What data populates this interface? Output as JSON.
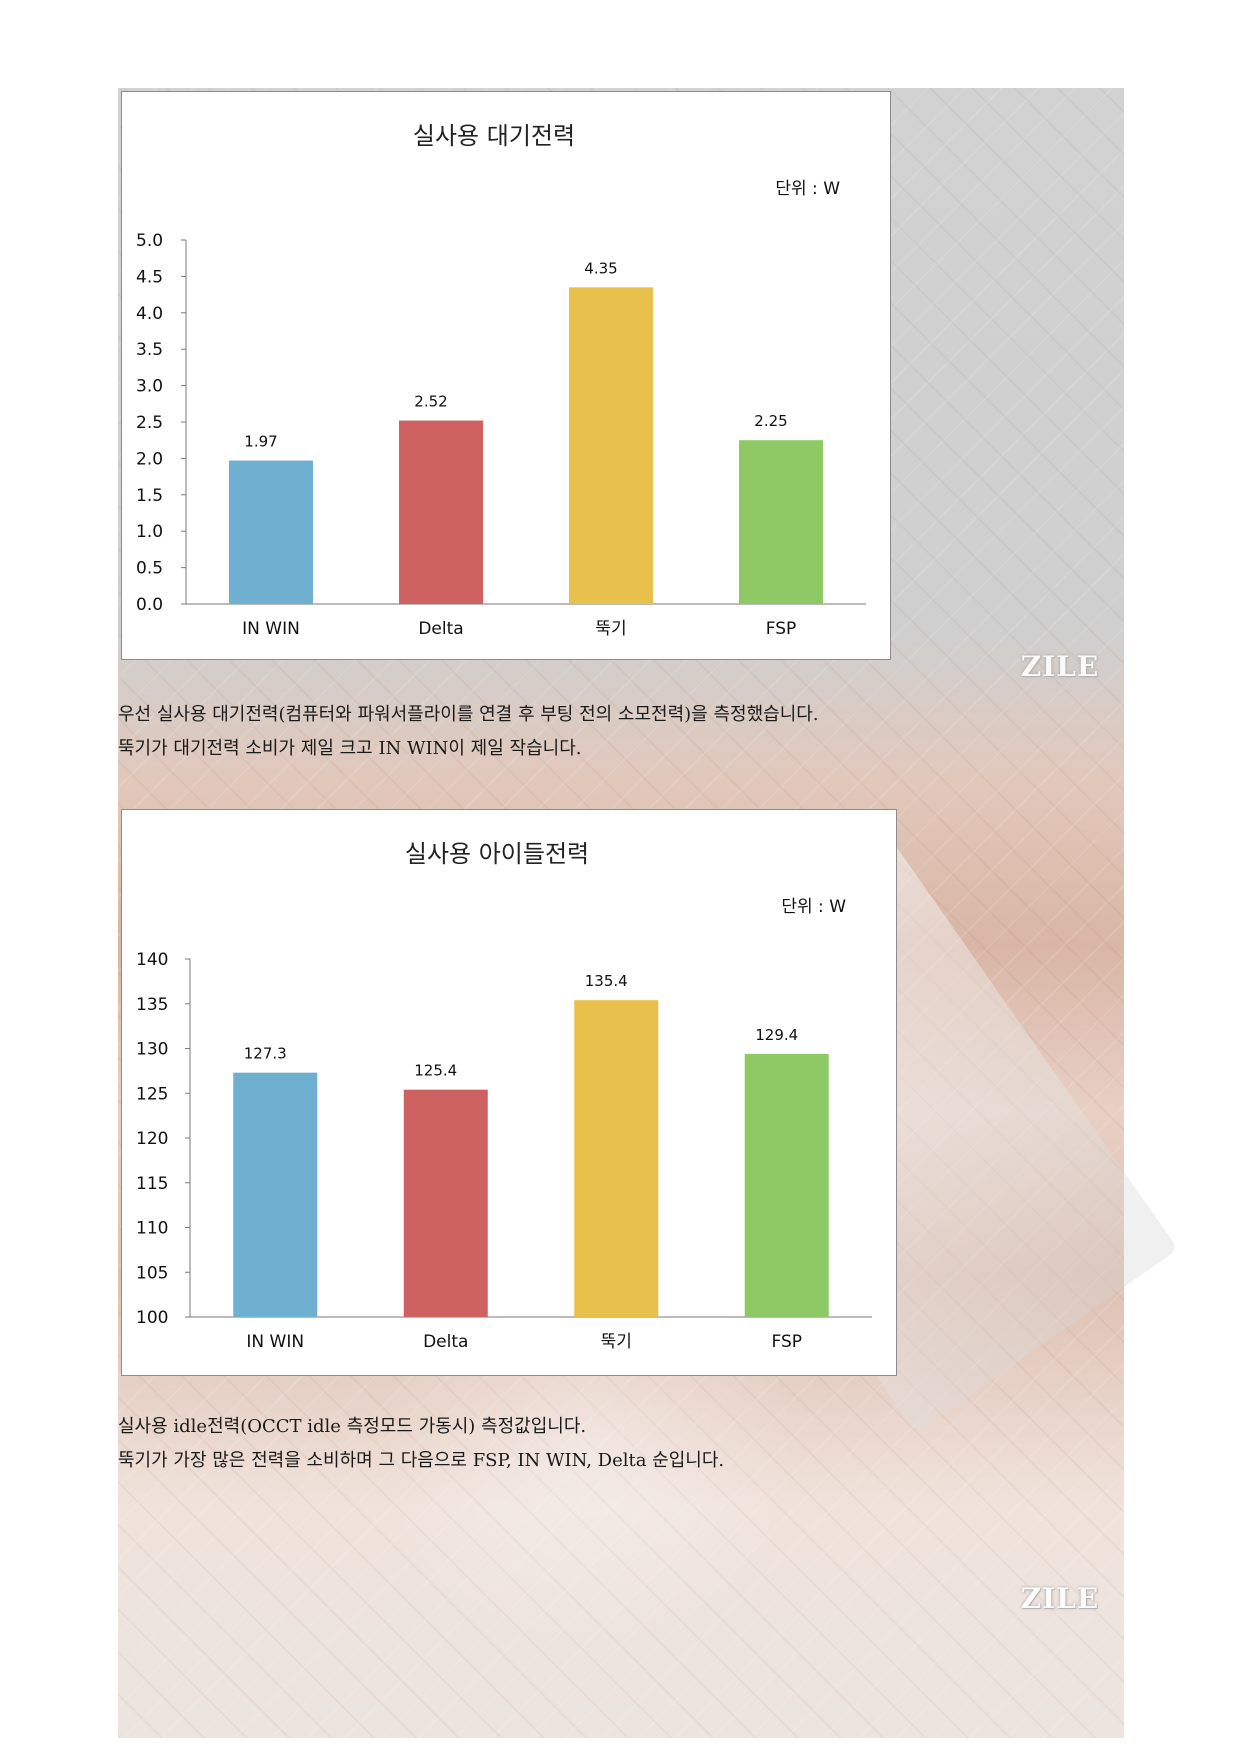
{
  "paragraphs": {
    "standby": [
      "우선 실사용 대기전력(컴퓨터와 파워서플라이를 연결 후 부팅 전의 소모전력)을 측정했습니다.",
      "뚝기가 대기전력 소비가 제일 크고 IN WIN이 제일 작습니다."
    ],
    "idle": [
      "실사용 idle전력(OCCT idle 측정모드 가동시) 측정값입니다.",
      "뚝기가 가장 많은 전력을 소비하며 그 다음으로 FSP, IN WIN, Delta 순입니다."
    ]
  },
  "logo_text": "ZILE",
  "chart_data": [
    {
      "type": "bar",
      "title": "실사용 대기전력",
      "unit_label": "단위 : W",
      "categories": [
        "IN WIN",
        "Delta",
        "뚝기",
        "FSP"
      ],
      "values": [
        1.97,
        2.52,
        4.35,
        2.25
      ],
      "data_labels": [
        "1.97",
        "2.52",
        "4.35",
        "2.25"
      ],
      "colors": [
        "#6fb0d0",
        "#cd6260",
        "#e8c14c",
        "#8ec965"
      ],
      "ylim": [
        0,
        5
      ],
      "yticks": [
        "0.0",
        "0.5",
        "1.0",
        "1.5",
        "2.0",
        "2.5",
        "3.0",
        "3.5",
        "4.0",
        "4.5",
        "5.0"
      ],
      "grid": false,
      "legend": "none"
    },
    {
      "type": "bar",
      "title": "실사용 아이들전력",
      "unit_label": "단위 : W",
      "categories": [
        "IN WIN",
        "Delta",
        "뚝기",
        "FSP"
      ],
      "values": [
        127.3,
        125.4,
        135.4,
        129.4
      ],
      "data_labels": [
        "127.3",
        "125.4",
        "135.4",
        "129.4"
      ],
      "colors": [
        "#6fb0d0",
        "#cd6260",
        "#e8c14c",
        "#8ec965"
      ],
      "ylim": [
        100,
        140
      ],
      "yticks": [
        "100",
        "105",
        "110",
        "115",
        "120",
        "125",
        "130",
        "135",
        "140"
      ],
      "grid": false,
      "legend": "none"
    }
  ]
}
